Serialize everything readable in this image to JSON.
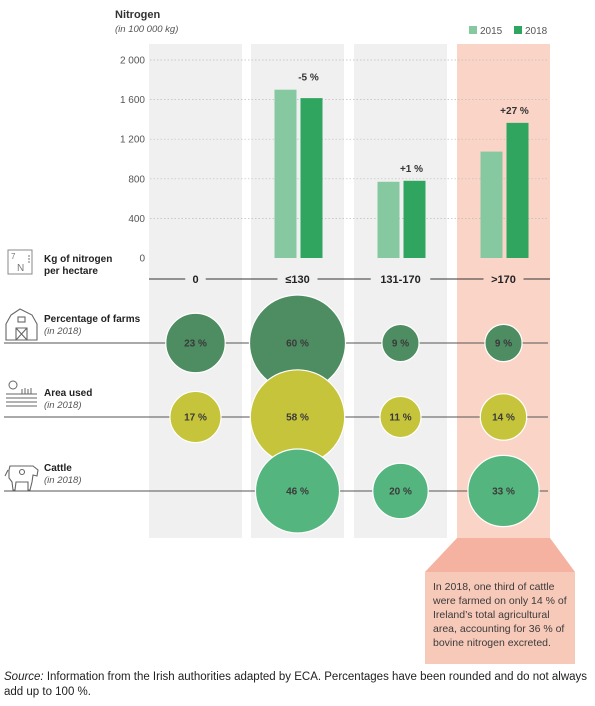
{
  "chart_data": {
    "type": "bar",
    "title": "Nitrogen",
    "subtitle": "(in 100 000 kg)",
    "y_ticks": [
      "2 000",
      "1 600",
      "1 200",
      "800",
      "400",
      "0"
    ],
    "ylim": [
      0,
      2000
    ],
    "categories": [
      "0",
      "≤130",
      "131-170",
      ">170"
    ],
    "x_label": "Kg of nitrogen per hectare",
    "legend_position": "top-right",
    "series": [
      {
        "name": "2015",
        "color": "#86c9a1",
        "values": [
          0,
          1700,
          770,
          1075
        ]
      },
      {
        "name": "2018",
        "color": "#2fa560",
        "values": [
          0,
          1615,
          780,
          1365
        ]
      }
    ],
    "change_labels": [
      "",
      "-5 %",
      "+1 %",
      "+27 %"
    ],
    "bubble_rows": [
      {
        "label": "Percentage of farms",
        "sublabel": "(in 2018)",
        "icon": "barn-icon",
        "color": "#4e8c61",
        "values": [
          23,
          60,
          9,
          9
        ],
        "labels": [
          "23 %",
          "60 %",
          "9 %",
          "9 %"
        ]
      },
      {
        "label": "Area used",
        "sublabel": "(in 2018)",
        "icon": "field-icon",
        "color": "#c6c43a",
        "values": [
          17,
          58,
          11,
          14
        ],
        "labels": [
          "17 %",
          "58 %",
          "11 %",
          "14 %"
        ]
      },
      {
        "label": "Cattle",
        "sublabel": "(in 2018)",
        "icon": "cow-icon",
        "color": "#55b57f",
        "values": [
          0,
          46,
          20,
          33
        ],
        "labels": [
          "",
          "46 %",
          "20 %",
          "33 %"
        ]
      }
    ],
    "highlight_color": "#fad5c7",
    "column_shade_color": "#f0f0f0"
  },
  "callout": "In 2018, one third of cattle were farmed on only 14 % of Ireland’s total agricultural area, accounting for 36 % of bovine nitrogen excreted.",
  "source": {
    "prefix": "Source:",
    "text": " Information from the Irish authorities adapted by ECA. Percentages have been rounded and do not always add up to 100 %."
  },
  "icon_text": {
    "box_top": "7",
    "box_bottom": "N"
  }
}
